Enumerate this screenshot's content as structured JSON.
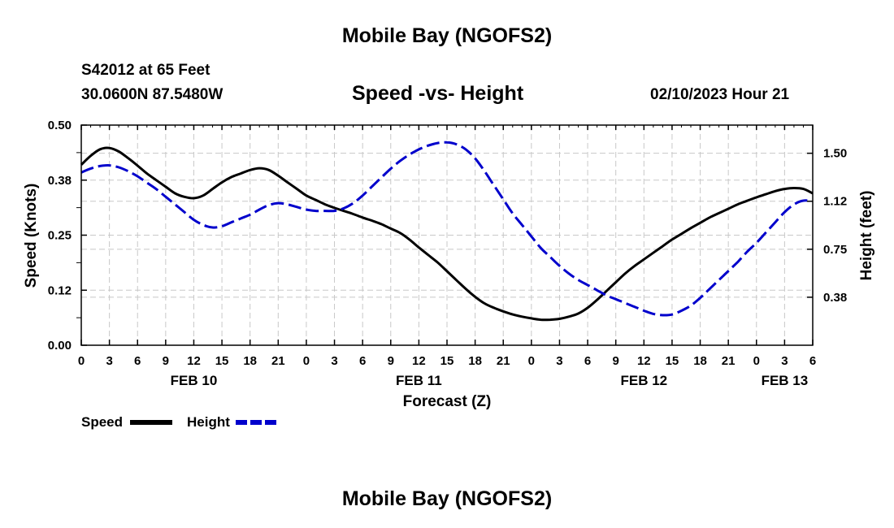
{
  "title": "Mobile Bay (NGOFS2)",
  "bottom_title": "Mobile Bay (NGOFS2)",
  "station": "S42012 at 65 Feet",
  "coords": "30.0600N  87.5480W",
  "subtitle": "Speed -vs- Height",
  "datetime": "02/10/2023 Hour 21",
  "colors": {
    "speed": "#000000",
    "height": "#0000cc",
    "grid": "#c8c8c8"
  },
  "chart_data": {
    "type": "line",
    "title": "Speed -vs- Height",
    "xlabel": "Forecast (Z)",
    "ylabel": "Speed (Knots)",
    "y2label": "Height (feet)",
    "xlim": [
      0,
      78
    ],
    "ylim": [
      0,
      0.5
    ],
    "y2lim": [
      0,
      1.72
    ],
    "x_tick_labels": [
      "0",
      "3",
      "6",
      "9",
      "12",
      "15",
      "18",
      "21",
      "0",
      "3",
      "6",
      "9",
      "12",
      "15",
      "18",
      "21",
      "0",
      "3",
      "6",
      "9",
      "12",
      "15",
      "18",
      "21",
      "0",
      "3",
      "6"
    ],
    "date_labels": [
      {
        "label": "FEB 10",
        "x": 12
      },
      {
        "label": "FEB 11",
        "x": 36
      },
      {
        "label": "FEB 12",
        "x": 60
      },
      {
        "label": "FEB 13",
        "x": 75
      }
    ],
    "y_ticks": [
      0.0,
      0.125,
      0.25,
      0.375,
      0.5
    ],
    "y_tick_labels": [
      "0.00",
      "0.12",
      "0.25",
      "0.38",
      "0.50"
    ],
    "y2_ticks": [
      0.375,
      0.75,
      1.125,
      1.5
    ],
    "y2_tick_labels": [
      "0.38",
      "0.75",
      "1.12",
      "1.50"
    ],
    "grid": true,
    "legend_position": "bottom-left",
    "series": [
      {
        "name": "Speed",
        "axis": "left",
        "style": "solid",
        "x": [
          0,
          1,
          2,
          3,
          4,
          5,
          6,
          7,
          8,
          9,
          10,
          11,
          12,
          13,
          14,
          15,
          16,
          17,
          18,
          19,
          20,
          21,
          22,
          23,
          24,
          25,
          26,
          27,
          28,
          29,
          30,
          31,
          32,
          33,
          34,
          35,
          36,
          37,
          38,
          39,
          40,
          41,
          42,
          43,
          44,
          45,
          46,
          47,
          48,
          49,
          50,
          51,
          52,
          53,
          54,
          55,
          56,
          57,
          58,
          59,
          60,
          61,
          62,
          63,
          64,
          65,
          66,
          67,
          68,
          69,
          70,
          71,
          72,
          73,
          74,
          75,
          76,
          77,
          78
        ],
        "y": [
          0.41,
          0.43,
          0.445,
          0.448,
          0.44,
          0.425,
          0.408,
          0.39,
          0.375,
          0.36,
          0.345,
          0.337,
          0.334,
          0.34,
          0.355,
          0.37,
          0.382,
          0.39,
          0.398,
          0.402,
          0.398,
          0.385,
          0.37,
          0.355,
          0.34,
          0.33,
          0.32,
          0.312,
          0.305,
          0.298,
          0.29,
          0.283,
          0.275,
          0.265,
          0.255,
          0.24,
          0.222,
          0.205,
          0.188,
          0.168,
          0.148,
          0.128,
          0.11,
          0.095,
          0.085,
          0.077,
          0.07,
          0.065,
          0.061,
          0.058,
          0.058,
          0.06,
          0.065,
          0.072,
          0.085,
          0.103,
          0.123,
          0.143,
          0.163,
          0.18,
          0.195,
          0.21,
          0.225,
          0.24,
          0.253,
          0.266,
          0.278,
          0.29,
          0.3,
          0.31,
          0.32,
          0.328,
          0.336,
          0.343,
          0.35,
          0.355,
          0.357,
          0.355,
          0.345
        ]
      },
      {
        "name": "Height",
        "axis": "right",
        "style": "dashed",
        "x": [
          0,
          1,
          2,
          3,
          4,
          5,
          6,
          7,
          8,
          9,
          10,
          11,
          12,
          13,
          14,
          15,
          16,
          17,
          18,
          19,
          20,
          21,
          22,
          23,
          24,
          25,
          26,
          27,
          28,
          29,
          30,
          31,
          32,
          33,
          34,
          35,
          36,
          37,
          38,
          39,
          40,
          41,
          42,
          43,
          44,
          45,
          46,
          47,
          48,
          49,
          50,
          51,
          52,
          53,
          54,
          55,
          56,
          57,
          58,
          59,
          60,
          61,
          62,
          63,
          64,
          65,
          66,
          67,
          68,
          69,
          70,
          71,
          72,
          73,
          74,
          75,
          76,
          77,
          78
        ],
        "y": [
          1.35,
          1.38,
          1.4,
          1.405,
          1.39,
          1.36,
          1.32,
          1.27,
          1.22,
          1.16,
          1.1,
          1.04,
          0.98,
          0.94,
          0.92,
          0.93,
          0.96,
          0.99,
          1.02,
          1.06,
          1.095,
          1.11,
          1.1,
          1.08,
          1.06,
          1.05,
          1.05,
          1.05,
          1.07,
          1.11,
          1.17,
          1.24,
          1.31,
          1.38,
          1.44,
          1.49,
          1.53,
          1.56,
          1.58,
          1.585,
          1.57,
          1.53,
          1.46,
          1.36,
          1.25,
          1.14,
          1.03,
          0.94,
          0.85,
          0.76,
          0.69,
          0.62,
          0.56,
          0.51,
          0.47,
          0.43,
          0.39,
          0.36,
          0.33,
          0.3,
          0.27,
          0.245,
          0.235,
          0.24,
          0.27,
          0.31,
          0.37,
          0.44,
          0.51,
          0.58,
          0.65,
          0.73,
          0.8,
          0.88,
          0.96,
          1.04,
          1.1,
          1.13,
          1.125
        ]
      }
    ]
  }
}
